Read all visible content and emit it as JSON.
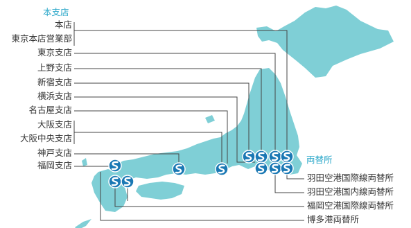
{
  "colors": {
    "land": "#7fcfd6",
    "accent": "#2aa7c9",
    "line": "#444444",
    "text": "#333333",
    "marker_outer": "#1a78b4",
    "marker_inner": "#ffffff"
  },
  "head_office": {
    "heading": "本支店",
    "branches": [
      "本店",
      "東京本店営業部",
      "東京支店",
      "上野支店",
      "新宿支店",
      "横浜支店",
      "名古屋支店",
      "大阪支店",
      "大阪中央支店",
      "神戸支店",
      "福岡支店"
    ]
  },
  "exchange": {
    "heading": "両替所",
    "locations": [
      "羽田空港国際線両替所",
      "羽田空港国内線両替所",
      "福岡空港国際線両替所",
      "博多港両替所"
    ]
  },
  "marker_icon": "company-logo-icon"
}
